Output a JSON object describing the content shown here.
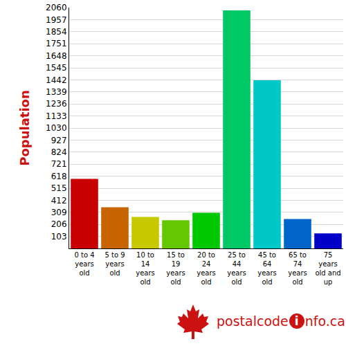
{
  "chart_data": {
    "type": "bar",
    "ylabel": "Population",
    "categories": [
      "0 to 4 years old",
      "5 to 9 years old",
      "10 to 14 years old",
      "15 to 19 years old",
      "20 to 24 years old",
      "25 to 44 years old",
      "45 to 64 years old",
      "65 to 74 years old",
      "75 years old and up"
    ],
    "values": [
      595,
      352,
      270,
      241,
      305,
      2037,
      1438,
      252,
      129
    ],
    "colors": [
      "#c80000",
      "#c86400",
      "#c8c800",
      "#64c800",
      "#00c800",
      "#00c864",
      "#00c8c8",
      "#0064c8",
      "#0000c8"
    ],
    "ylim": [
      0,
      2060
    ],
    "yticks": [
      103,
      206,
      309,
      412,
      515,
      618,
      721,
      824,
      927,
      1030,
      1133,
      1236,
      1339,
      1442,
      1545,
      1648,
      1751,
      1854,
      1957,
      2060
    ],
    "grid": true
  },
  "footer": {
    "logo": "postalcodeinfo.ca"
  }
}
